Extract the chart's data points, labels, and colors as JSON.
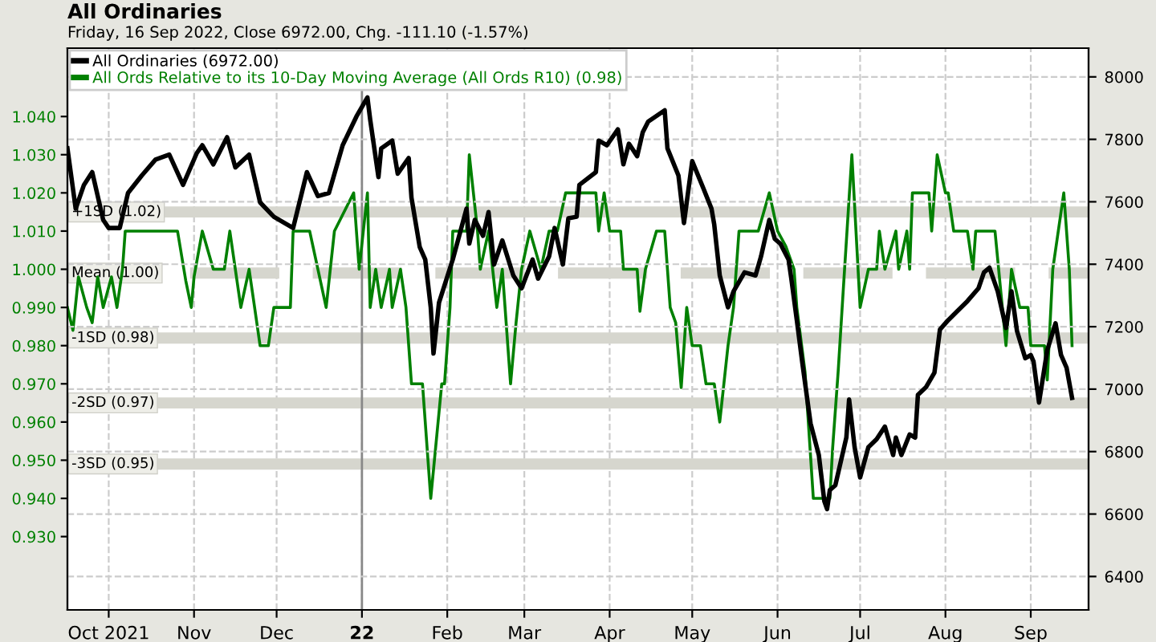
{
  "chart_data": {
    "type": "line",
    "title": "All Ordinaries",
    "subtitle": "Friday, 16 Sep 2022, Close 6972.00, Chg. -111.10 (-1.57%)",
    "xlim": [
      "2021-09-16",
      "2022-09-22"
    ],
    "xticks": [
      {
        "value": "2021-10-01",
        "label": "Oct 2021"
      },
      {
        "value": "2021-11-01",
        "label": "Nov"
      },
      {
        "value": "2021-12-01",
        "label": "Dec"
      },
      {
        "value": "2022-01-01",
        "label": "22"
      },
      {
        "value": "2022-02-01",
        "label": "Feb"
      },
      {
        "value": "2022-03-01",
        "label": "Mar"
      },
      {
        "value": "2022-04-01",
        "label": "Apr"
      },
      {
        "value": "2022-05-01",
        "label": "May"
      },
      {
        "value": "2022-06-01",
        "label": "Jun"
      },
      {
        "value": "2022-07-01",
        "label": "Jul"
      },
      {
        "value": "2022-08-01",
        "label": "Aug"
      },
      {
        "value": "2022-09-01",
        "label": "Sep"
      }
    ],
    "ylim": [
      0.9108,
      1.0579
    ],
    "yticks": [
      {
        "value": 0.93,
        "label": "0.930"
      },
      {
        "value": 0.94,
        "label": "0.940"
      },
      {
        "value": 0.95,
        "label": "0.950"
      },
      {
        "value": 0.96,
        "label": "0.960"
      },
      {
        "value": 0.97,
        "label": "0.970"
      },
      {
        "value": 0.98,
        "label": "0.980"
      },
      {
        "value": 0.99,
        "label": "0.990"
      },
      {
        "value": 1.0,
        "label": "1.000"
      },
      {
        "value": 1.01,
        "label": "1.010"
      },
      {
        "value": 1.02,
        "label": "1.020"
      },
      {
        "value": 1.03,
        "label": "1.030"
      },
      {
        "value": 1.04,
        "label": "1.040"
      }
    ],
    "y2lim": [
      6293,
      8092
    ],
    "y2ticks": [
      6400,
      6600,
      6800,
      7000,
      7200,
      7400,
      7600,
      7800,
      8000
    ],
    "grid": true,
    "legend": "top left",
    "ref_lines": [
      {
        "axis": "y",
        "value": 1.015,
        "label": "+1SD (1.02)",
        "color": "#d6d6ce",
        "line_style": "solid"
      },
      {
        "axis": "y",
        "value": 0.999,
        "label": "Mean (1.00)",
        "color": "#d6d6ce",
        "line_style": "dashed"
      },
      {
        "axis": "y",
        "value": 0.982,
        "label": "-1SD (0.98)",
        "color": "#d6d6ce",
        "line_style": "solid"
      },
      {
        "axis": "y",
        "value": 0.965,
        "label": "-2SD (0.97)",
        "color": "#d6d6ce",
        "line_style": "solid"
      },
      {
        "axis": "y",
        "value": 0.949,
        "label": "-3SD (0.95)",
        "color": "#d6d6ce",
        "line_style": "solid"
      },
      {
        "axis": "x",
        "value": "2022-01-01",
        "color": "#888888",
        "line_style": "solid"
      }
    ],
    "series": [
      {
        "name": "All Ords Relative to its 10-Day Moving Average (All Ords R10) (0.98)",
        "color": "#008000",
        "axis": "y",
        "x": [
          "2021-09-16",
          "2021-09-18",
          "2021-09-20",
          "2021-09-23",
          "2021-09-25",
          "2021-09-27",
          "2021-09-29",
          "2021-10-02",
          "2021-10-04",
          "2021-10-06",
          "2021-10-07",
          "2021-10-26",
          "2021-10-29",
          "2021-10-31",
          "2021-11-01",
          "2021-11-04",
          "2021-11-08",
          "2021-11-12",
          "2021-11-14",
          "2021-11-16",
          "2021-11-18",
          "2021-11-21",
          "2021-11-23",
          "2021-11-25",
          "2021-11-28",
          "2021-11-30",
          "2021-12-06",
          "2021-12-07",
          "2021-12-13",
          "2021-12-19",
          "2021-12-22",
          "2021-12-29",
          "2021-12-31",
          "2022-01-03",
          "2022-01-04",
          "2022-01-06",
          "2022-01-08",
          "2022-01-11",
          "2022-01-12",
          "2022-01-15",
          "2022-01-17",
          "2022-01-19",
          "2022-01-23",
          "2022-01-26",
          "2022-01-30",
          "2022-01-31",
          "2022-02-02",
          "2022-02-03",
          "2022-02-08",
          "2022-02-09",
          "2022-02-12",
          "2022-02-13",
          "2022-02-16",
          "2022-02-19",
          "2022-02-21",
          "2022-02-24",
          "2022-02-26",
          "2022-02-28",
          "2022-03-03",
          "2022-03-07",
          "2022-03-10",
          "2022-03-13",
          "2022-03-16",
          "2022-03-27",
          "2022-03-28",
          "2022-03-30",
          "2022-04-01",
          "2022-04-05",
          "2022-04-06",
          "2022-04-11",
          "2022-04-12",
          "2022-04-14",
          "2022-04-18",
          "2022-04-21",
          "2022-04-23",
          "2022-04-25",
          "2022-04-27",
          "2022-04-29",
          "2022-05-01",
          "2022-05-04",
          "2022-05-06",
          "2022-05-09",
          "2022-05-11",
          "2022-05-14",
          "2022-05-16",
          "2022-05-18",
          "2022-05-25",
          "2022-05-29",
          "2022-06-01",
          "2022-06-04",
          "2022-06-07",
          "2022-06-08",
          "2022-06-11",
          "2022-06-14",
          "2022-06-20",
          "2022-06-21",
          "2022-06-23",
          "2022-06-25",
          "2022-06-28",
          "2022-07-01",
          "2022-07-04",
          "2022-07-07",
          "2022-07-08",
          "2022-07-10",
          "2022-07-14",
          "2022-07-15",
          "2022-07-18",
          "2022-07-19",
          "2022-07-20",
          "2022-07-26",
          "2022-07-27",
          "2022-07-29",
          "2022-08-01",
          "2022-08-02",
          "2022-08-04",
          "2022-08-09",
          "2022-08-11",
          "2022-08-12",
          "2022-08-19",
          "2022-08-23",
          "2022-08-25",
          "2022-08-28",
          "2022-08-31",
          "2022-09-01",
          "2022-09-06",
          "2022-09-07",
          "2022-09-09",
          "2022-09-13",
          "2022-09-15",
          "2022-09-16"
        ],
        "values": [
          0.99,
          0.984,
          0.998,
          0.99,
          0.986,
          0.998,
          0.99,
          0.998,
          0.99,
          1.0,
          1.01,
          1.01,
          0.997,
          0.99,
          0.998,
          1.01,
          1.0,
          1.0,
          1.01,
          1.0,
          0.99,
          1.0,
          0.99,
          0.98,
          0.98,
          0.99,
          0.99,
          1.01,
          1.01,
          0.99,
          1.01,
          1.02,
          1.0,
          1.02,
          0.99,
          1.0,
          0.99,
          1.0,
          0.99,
          1.0,
          0.99,
          0.97,
          0.97,
          0.94,
          0.97,
          0.97,
          0.99,
          1.01,
          1.01,
          1.03,
          1.01,
          1.0,
          1.01,
          0.99,
          1.0,
          0.97,
          0.986,
          1.0,
          1.01,
          1.0,
          1.01,
          1.01,
          1.02,
          1.02,
          1.01,
          1.02,
          1.01,
          1.01,
          1.0,
          1.0,
          0.989,
          1.0,
          1.01,
          1.01,
          0.99,
          0.986,
          0.969,
          0.99,
          0.98,
          0.98,
          0.97,
          0.97,
          0.96,
          0.98,
          0.99,
          1.01,
          1.01,
          1.02,
          1.01,
          1.006,
          1.0,
          0.99,
          0.973,
          0.94,
          0.94,
          0.953,
          0.973,
          0.996,
          1.03,
          0.99,
          1.0,
          1.0,
          1.01,
          1.0,
          1.01,
          1.0,
          1.01,
          1.0,
          1.02,
          1.02,
          1.01,
          1.03,
          1.02,
          1.02,
          1.01,
          1.01,
          1.0,
          1.01,
          1.01,
          0.98,
          1.0,
          0.99,
          0.99,
          0.98,
          0.98,
          0.971,
          1.0,
          1.02,
          1.0,
          0.98
        ]
      },
      {
        "name": "All Ordinaries (6972.00)",
        "color": "#000000",
        "axis": "y2",
        "x": [
          "2021-09-16",
          "2021-09-19",
          "2021-09-22",
          "2021-09-25",
          "2021-09-29",
          "2021-10-01",
          "2021-10-05",
          "2021-10-08",
          "2021-10-13",
          "2021-10-18",
          "2021-10-23",
          "2021-10-28",
          "2021-11-02",
          "2021-11-04",
          "2021-11-08",
          "2021-11-13",
          "2021-11-16",
          "2021-11-21",
          "2021-11-25",
          "2021-11-30",
          "2021-12-07",
          "2021-12-10",
          "2021-12-12",
          "2021-12-16",
          "2021-12-20",
          "2021-12-25",
          "2021-12-30",
          "2022-01-03",
          "2022-01-04",
          "2022-01-07",
          "2022-01-08",
          "2022-01-12",
          "2022-01-14",
          "2022-01-18",
          "2022-01-19",
          "2022-01-22",
          "2022-01-24",
          "2022-01-26",
          "2022-01-27",
          "2022-01-29",
          "2022-02-03",
          "2022-02-08",
          "2022-02-09",
          "2022-02-11",
          "2022-02-14",
          "2022-02-16",
          "2022-02-18",
          "2022-02-21",
          "2022-02-25",
          "2022-02-28",
          "2022-03-04",
          "2022-03-06",
          "2022-03-10",
          "2022-03-12",
          "2022-03-15",
          "2022-03-17",
          "2022-03-20",
          "2022-03-21",
          "2022-03-27",
          "2022-03-28",
          "2022-03-31",
          "2022-04-04",
          "2022-04-06",
          "2022-04-08",
          "2022-04-11",
          "2022-04-13",
          "2022-04-15",
          "2022-04-21",
          "2022-04-22",
          "2022-04-26",
          "2022-04-28",
          "2022-05-01",
          "2022-05-05",
          "2022-05-08",
          "2022-05-09",
          "2022-05-11",
          "2022-05-14",
          "2022-05-16",
          "2022-05-20",
          "2022-05-24",
          "2022-05-26",
          "2022-05-29",
          "2022-05-31",
          "2022-06-02",
          "2022-06-05",
          "2022-06-06",
          "2022-06-08",
          "2022-06-10",
          "2022-06-13",
          "2022-06-16",
          "2022-06-18",
          "2022-06-19",
          "2022-06-20",
          "2022-06-22",
          "2022-06-26",
          "2022-06-27",
          "2022-06-29",
          "2022-07-01",
          "2022-07-04",
          "2022-07-07",
          "2022-07-10",
          "2022-07-13",
          "2022-07-14",
          "2022-07-16",
          "2022-07-19",
          "2022-07-21",
          "2022-07-22",
          "2022-07-25",
          "2022-07-28",
          "2022-07-30",
          "2022-08-02",
          "2022-08-05",
          "2022-08-09",
          "2022-08-13",
          "2022-08-15",
          "2022-08-17",
          "2022-08-20",
          "2022-08-23",
          "2022-08-25",
          "2022-08-27",
          "2022-08-30",
          "2022-09-01",
          "2022-09-02",
          "2022-09-04",
          "2022-09-07",
          "2022-09-10",
          "2022-09-12",
          "2022-09-14",
          "2022-09-16"
        ],
        "values": [
          7771,
          7578,
          7654,
          7695,
          7542,
          7516,
          7516,
          7628,
          7684,
          7735,
          7751,
          7654,
          7756,
          7781,
          7720,
          7807,
          7710,
          7751,
          7598,
          7552,
          7516,
          7623,
          7695,
          7618,
          7628,
          7781,
          7873,
          7934,
          7863,
          7679,
          7771,
          7796,
          7690,
          7740,
          7613,
          7455,
          7415,
          7262,
          7114,
          7277,
          7415,
          7578,
          7466,
          7542,
          7491,
          7567,
          7399,
          7476,
          7364,
          7323,
          7415,
          7354,
          7425,
          7516,
          7399,
          7547,
          7552,
          7654,
          7695,
          7796,
          7781,
          7832,
          7720,
          7786,
          7746,
          7822,
          7857,
          7893,
          7771,
          7684,
          7532,
          7730,
          7644,
          7578,
          7527,
          7364,
          7262,
          7313,
          7374,
          7364,
          7425,
          7542,
          7481,
          7466,
          7415,
          7354,
          7221,
          7084,
          6890,
          6789,
          6641,
          6616,
          6677,
          6692,
          6845,
          6967,
          6814,
          6717,
          6814,
          6840,
          6880,
          6789,
          6845,
          6789,
          6855,
          6845,
          6982,
          7007,
          7053,
          7191,
          7221,
          7247,
          7282,
          7323,
          7374,
          7389,
          7313,
          7196,
          7313,
          7186,
          7099,
          7109,
          7089,
          6957,
          7125,
          7211,
          7109,
          7069,
          6972
        ]
      }
    ]
  }
}
